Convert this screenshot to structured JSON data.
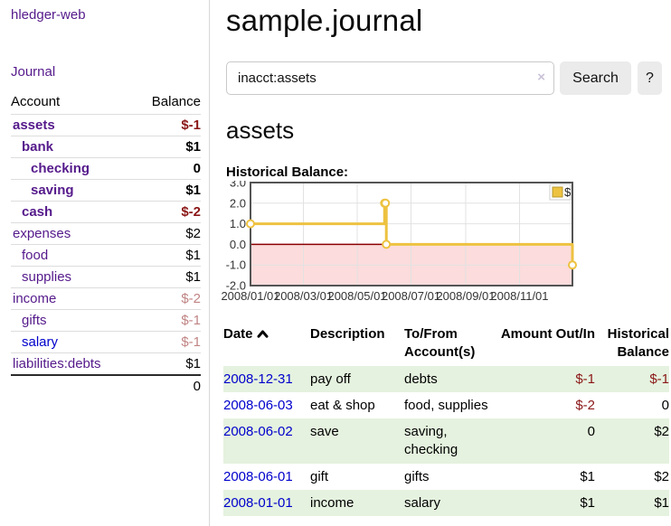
{
  "app": {
    "title": "hledger-web"
  },
  "sidebar": {
    "nav_journal": "Journal",
    "accounts": {
      "col_account": "Account",
      "col_balance": "Balance",
      "rows": [
        {
          "name": "assets",
          "indent": 1,
          "bold": true,
          "balance": "$-1",
          "balance_style": "neg"
        },
        {
          "name": "bank",
          "indent": 2,
          "bold": true,
          "balance": "$1",
          "balance_style": "pos"
        },
        {
          "name": "checking",
          "indent": 3,
          "bold": true,
          "balance": "0",
          "balance_style": "pos"
        },
        {
          "name": "saving",
          "indent": 3,
          "bold": true,
          "balance": "$1",
          "balance_style": "pos"
        },
        {
          "name": "cash",
          "indent": 2,
          "bold": true,
          "balance": "$-2",
          "balance_style": "neg"
        },
        {
          "name": "expenses",
          "indent": 1,
          "bold": false,
          "balance": "$2",
          "balance_style": "pos"
        },
        {
          "name": "food",
          "indent": 2,
          "bold": false,
          "balance": "$1",
          "balance_style": "pos"
        },
        {
          "name": "supplies",
          "indent": 2,
          "bold": false,
          "balance": "$1",
          "balance_style": "pos"
        },
        {
          "name": "income",
          "indent": 1,
          "bold": false,
          "balance": "$-2",
          "balance_style": "dimneg"
        },
        {
          "name": "gifts",
          "indent": 2,
          "bold": false,
          "balance": "$-1",
          "balance_style": "dimneg"
        },
        {
          "name": "salary",
          "indent": 2,
          "bold": false,
          "link_color": "blue",
          "balance": "$-1",
          "balance_style": "dimneg"
        },
        {
          "name": "liabilities:debts",
          "indent": 1,
          "bold": false,
          "balance": "$1",
          "balance_style": "pos"
        }
      ],
      "total": "0"
    }
  },
  "header": {
    "title": "sample.journal"
  },
  "search": {
    "value": "inacct:assets",
    "clear_icon": "×",
    "button_label": "Search",
    "help_label": "?"
  },
  "account_page": {
    "heading": "assets",
    "chart_label": "Historical Balance:"
  },
  "chart_data": {
    "type": "line",
    "subtype": "step",
    "title": "Historical Balance",
    "legend": [
      {
        "label": "$",
        "color": "#edc240"
      }
    ],
    "legend_position": "top-right",
    "grid": true,
    "ylim": [
      -2,
      3
    ],
    "x_range_days": [
      0,
      365
    ],
    "y_ticks": [
      {
        "label": "3.0",
        "value": 3
      },
      {
        "label": "2.0",
        "value": 2
      },
      {
        "label": "1.0",
        "value": 1
      },
      {
        "label": "0.0",
        "value": 0
      },
      {
        "label": "-1.0",
        "value": -1
      },
      {
        "label": "-2.0",
        "value": -2
      }
    ],
    "x_ticks": [
      {
        "label": "2008/01/01",
        "day": 0
      },
      {
        "label": "2008/03/01",
        "day": 60
      },
      {
        "label": "2008/05/01",
        "day": 121
      },
      {
        "label": "2008/07/01",
        "day": 182
      },
      {
        "label": "2008/09/01",
        "day": 244
      },
      {
        "label": "2008/11/01",
        "day": 305
      }
    ],
    "series": [
      {
        "name": "$",
        "points": [
          {
            "date": "2008-01-01",
            "day": 0,
            "value": 1
          },
          {
            "date": "2008-06-01",
            "day": 152,
            "value": 2
          },
          {
            "date": "2008-06-02",
            "day": 153,
            "value": 2
          },
          {
            "date": "2008-06-03",
            "day": 154,
            "value": 0
          },
          {
            "date": "2008-12-31",
            "day": 365,
            "value": -1
          }
        ]
      }
    ],
    "colors": {
      "line": "#edc240",
      "marker_fill": "#ffffff",
      "negative_fill": "#fcdcdc",
      "zero_line": "#8b0000",
      "grid": "#e2e2e2",
      "border": "#545454",
      "tick_text": "#333333"
    }
  },
  "transactions": {
    "columns": [
      {
        "label": "Date",
        "sorted": "asc"
      },
      {
        "label": "Description"
      },
      {
        "label": "To/From Account(s)"
      },
      {
        "label": "Amount Out/In",
        "align": "right"
      },
      {
        "label": "Historical Balance",
        "align": "right"
      }
    ],
    "rows": [
      {
        "date": "2008-12-31",
        "description": "pay off",
        "accounts": "debts",
        "amount": "$-1",
        "amount_neg": true,
        "balance": "$-1",
        "balance_neg": true,
        "shade": true
      },
      {
        "date": "2008-06-03",
        "description": "eat & shop",
        "accounts": "food, supplies",
        "amount": "$-2",
        "amount_neg": true,
        "balance": "0",
        "balance_neg": false,
        "shade": false
      },
      {
        "date": "2008-06-02",
        "description": "save",
        "accounts": "saving, checking",
        "amount": "0",
        "amount_neg": false,
        "balance": "$2",
        "balance_neg": false,
        "shade": true
      },
      {
        "date": "2008-06-01",
        "description": "gift",
        "accounts": "gifts",
        "amount": "$1",
        "amount_neg": false,
        "balance": "$2",
        "balance_neg": false,
        "shade": false
      },
      {
        "date": "2008-01-01",
        "description": "income",
        "accounts": "salary",
        "amount": "$1",
        "amount_neg": false,
        "balance": "$1",
        "balance_neg": false,
        "shade": true
      }
    ]
  },
  "colors": {
    "link_purple": "#551a8b",
    "link_blue": "#0000cc",
    "negative_red": "#8b1717",
    "dim_negative_red": "#c08484",
    "row_stripe_green": "#e5f2df",
    "button_gray": "#ebebeb"
  }
}
